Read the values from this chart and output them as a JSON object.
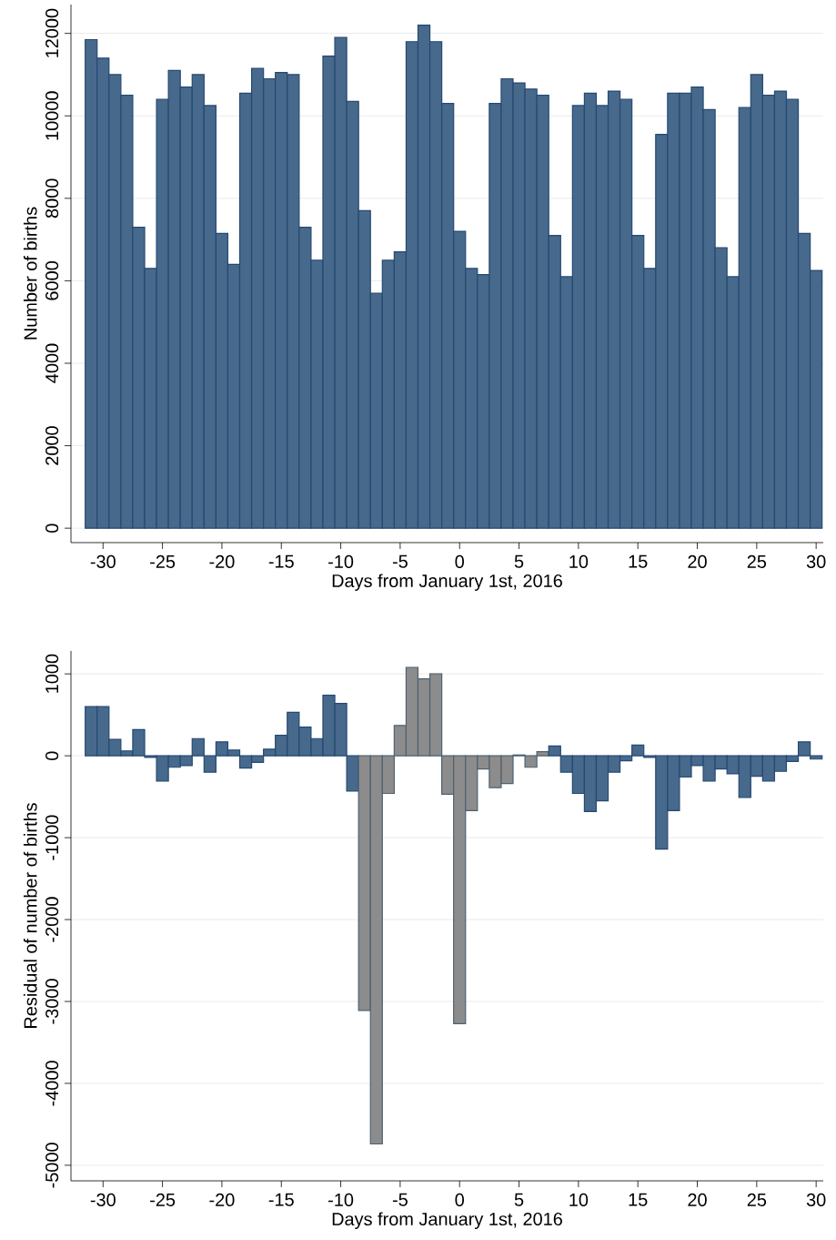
{
  "chart_data": [
    {
      "type": "bar",
      "xlabel": "Days from January 1st, 2016",
      "ylabel": "Number of births",
      "x": [
        -31,
        -30,
        -29,
        -28,
        -27,
        -26,
        -25,
        -24,
        -23,
        -22,
        -21,
        -20,
        -19,
        -18,
        -17,
        -16,
        -15,
        -14,
        -13,
        -12,
        -11,
        -10,
        -9,
        -8,
        -7,
        -6,
        -5,
        -4,
        -3,
        -2,
        -1,
        0,
        1,
        2,
        3,
        4,
        5,
        6,
        7,
        8,
        9,
        10,
        11,
        12,
        13,
        14,
        15,
        16,
        17,
        18,
        19,
        20,
        21,
        22,
        23,
        24,
        25,
        26,
        27,
        28,
        29,
        30
      ],
      "values": [
        11850,
        11400,
        11000,
        10500,
        7300,
        6300,
        10400,
        11100,
        10700,
        11000,
        10250,
        7150,
        6400,
        10550,
        11150,
        10900,
        11050,
        11000,
        7300,
        6500,
        11450,
        11900,
        10350,
        7700,
        5700,
        6500,
        6700,
        11800,
        12200,
        11800,
        10300,
        7200,
        6300,
        6150,
        10300,
        10900,
        10800,
        10650,
        10500,
        7100,
        6100,
        10250,
        10550,
        10250,
        10600,
        10400,
        7100,
        6300,
        9550,
        10550,
        10550,
        10700,
        10150,
        6800,
        6100,
        10200,
        11000,
        10500,
        10600,
        10400,
        7150,
        6250
      ],
      "color": "#46698c",
      "xlim": [
        -32.7,
        30.6
      ],
      "ylim": [
        -350,
        12700
      ],
      "xticks": [
        -30,
        -25,
        -20,
        -15,
        -10,
        -5,
        0,
        5,
        10,
        15,
        20,
        25,
        30
      ],
      "yticks": [
        0,
        2000,
        4000,
        6000,
        8000,
        10000,
        12000
      ],
      "grid": "y"
    },
    {
      "type": "bar",
      "xlabel": "Days from January 1st, 2016",
      "ylabel": "Residual of number of births",
      "x": [
        -31,
        -30,
        -29,
        -28,
        -27,
        -26,
        -25,
        -24,
        -23,
        -22,
        -21,
        -20,
        -19,
        -18,
        -17,
        -16,
        -15,
        -14,
        -13,
        -12,
        -11,
        -10,
        -9,
        -8,
        -7,
        -6,
        -5,
        -4,
        -3,
        -2,
        -1,
        0,
        1,
        2,
        3,
        4,
        5,
        6,
        7,
        8,
        9,
        10,
        11,
        12,
        13,
        14,
        15,
        16,
        17,
        18,
        19,
        20,
        21,
        22,
        23,
        24,
        25,
        26,
        27,
        28,
        29,
        30
      ],
      "values": [
        600,
        600,
        200,
        60,
        320,
        -20,
        -310,
        -140,
        -120,
        210,
        -200,
        170,
        70,
        -150,
        -80,
        80,
        250,
        530,
        350,
        210,
        740,
        640,
        -430,
        -3110,
        -4740,
        -460,
        370,
        1080,
        940,
        1000,
        -470,
        -3270,
        -670,
        -160,
        -390,
        -340,
        10,
        -140,
        50,
        120,
        -200,
        -460,
        -680,
        -550,
        -200,
        -60,
        130,
        -20,
        -1140,
        -670,
        -260,
        -120,
        -310,
        -160,
        -220,
        -510,
        -250,
        -310,
        -190,
        -70,
        170,
        -40
      ],
      "colors": [
        "#46698c",
        "#46698c",
        "#46698c",
        "#46698c",
        "#46698c",
        "#46698c",
        "#46698c",
        "#46698c",
        "#46698c",
        "#46698c",
        "#46698c",
        "#46698c",
        "#46698c",
        "#46698c",
        "#46698c",
        "#46698c",
        "#46698c",
        "#46698c",
        "#46698c",
        "#46698c",
        "#46698c",
        "#46698c",
        "#46698c",
        "#8c8c8c",
        "#8c8c8c",
        "#8c8c8c",
        "#8c8c8c",
        "#8c8c8c",
        "#8c8c8c",
        "#8c8c8c",
        "#8c8c8c",
        "#8c8c8c",
        "#8c8c8c",
        "#8c8c8c",
        "#8c8c8c",
        "#8c8c8c",
        "#8c8c8c",
        "#8c8c8c",
        "#8c8c8c",
        "#46698c",
        "#46698c",
        "#46698c",
        "#46698c",
        "#46698c",
        "#46698c",
        "#46698c",
        "#46698c",
        "#46698c",
        "#46698c",
        "#46698c",
        "#46698c",
        "#46698c",
        "#46698c",
        "#46698c",
        "#46698c",
        "#46698c",
        "#46698c",
        "#46698c",
        "#46698c",
        "#46698c",
        "#46698c",
        "#46698c"
      ],
      "xlim": [
        -32.7,
        30.6
      ],
      "ylim": [
        -5190,
        1280
      ],
      "xticks": [
        -30,
        -25,
        -20,
        -15,
        -10,
        -5,
        0,
        5,
        10,
        15,
        20,
        25,
        30
      ],
      "yticks": [
        -5000,
        -4000,
        -3000,
        -2000,
        -1000,
        0,
        1000
      ],
      "grid": "y"
    }
  ]
}
